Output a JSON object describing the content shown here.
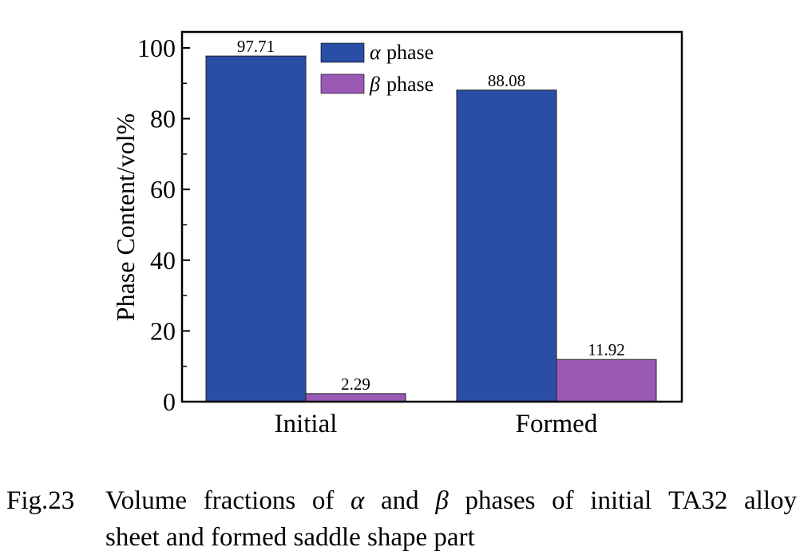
{
  "chart_data": {
    "type": "bar",
    "categories": [
      "Initial",
      "Formed"
    ],
    "series": [
      {
        "name": "α phase",
        "values": [
          97.71,
          88.08
        ],
        "color": "#2a4ea5"
      },
      {
        "name": "β phase",
        "values": [
          2.29,
          11.92
        ],
        "color": "#9b59b6"
      }
    ],
    "data_labels": [
      [
        "97.71",
        "88.08"
      ],
      [
        "2.29",
        "11.92"
      ]
    ],
    "ylabel": "Phase Content/vol%",
    "xlabel": "",
    "ylim": [
      0,
      100
    ],
    "yticks": [
      0,
      20,
      40,
      60,
      80,
      100
    ],
    "legend": {
      "placement": "top-center",
      "entries": [
        {
          "symbol": "α",
          "text": "phase"
        },
        {
          "symbol": "β",
          "text": "phase"
        }
      ]
    },
    "grid": false
  },
  "caption": {
    "number": "Fig.23",
    "line1_words": [
      "Volume",
      "fractions",
      "of",
      "α",
      "and",
      "β",
      "phases",
      "of",
      "initial",
      "TA32",
      "alloy"
    ],
    "line2": "sheet and formed saddle shape part"
  }
}
